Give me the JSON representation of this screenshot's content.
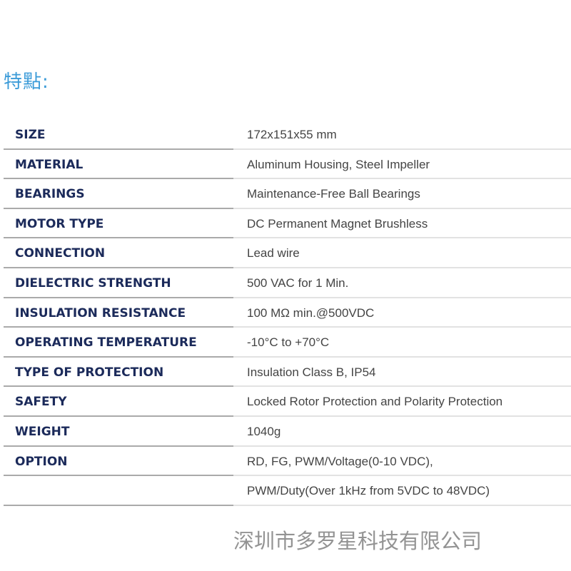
{
  "title": "特點:",
  "specs": [
    {
      "label": "SIZE",
      "value": "172x151x55 mm"
    },
    {
      "label": "MATERIAL",
      "value": "Aluminum Housing, Steel Impeller"
    },
    {
      "label": "BEARINGS",
      "value": "Maintenance-Free Ball Bearings"
    },
    {
      "label": "MOTOR TYPE",
      "value": "DC Permanent Magnet Brushless"
    },
    {
      "label": "CONNECTION",
      "value": "Lead wire"
    },
    {
      "label": "DIELECTRIC STRENGTH",
      "value": "500 VAC for 1 Min."
    },
    {
      "label": "INSULATION RESISTANCE",
      "value": "100 MΩ min.@500VDC"
    },
    {
      "label": "OPERATING TEMPERATURE",
      "value": "-10°C to +70°C"
    },
    {
      "label": "TYPE OF PROTECTION",
      "value": "Insulation Class B, IP54"
    },
    {
      "label": "SAFETY",
      "value": "Locked Rotor Protection and Polarity Protection"
    },
    {
      "label": "WEIGHT",
      "value": "1040g"
    },
    {
      "label": "OPTION",
      "value": "RD, FG, PWM/Voltage(0-10 VDC),"
    },
    {
      "label": "",
      "value": "PWM/Duty(Over 1kHz from 5VDC to 48VDC)"
    }
  ],
  "watermark": "深圳市多罗星科技有限公司",
  "colors": {
    "title": "#3b9bd8",
    "label": "#1b2a5a",
    "value": "#444444"
  }
}
